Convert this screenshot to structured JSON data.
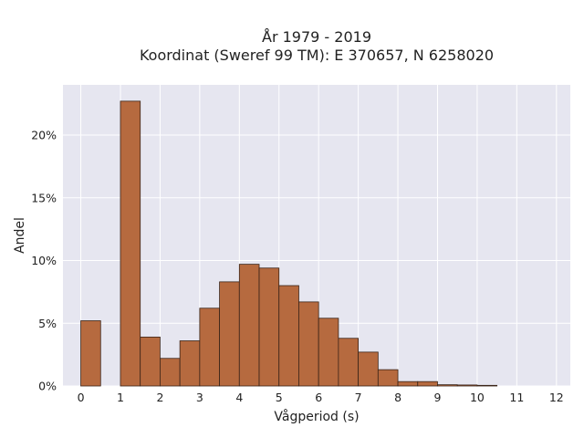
{
  "chart_data": {
    "type": "bar",
    "title": "År 1979 - 2019",
    "subtitle": "Koordinat (Sweref 99 TM): E 370657, N 6258020",
    "xlabel": "Vågperiod (s)",
    "ylabel": "Andel",
    "x_ticks": [
      "0",
      "1",
      "2",
      "3",
      "4",
      "5",
      "6",
      "7",
      "8",
      "9",
      "10",
      "11",
      "12"
    ],
    "y_ticks": [
      "0%",
      "5%",
      "10%",
      "15%",
      "20%"
    ],
    "xlim": [
      -0.45,
      12.35
    ],
    "ylim": [
      0,
      24
    ],
    "bin_width": 0.5,
    "bins": [
      {
        "x": 0.0,
        "value": 5.2
      },
      {
        "x": 0.5,
        "value": 0.0
      },
      {
        "x": 1.0,
        "value": 22.7
      },
      {
        "x": 1.5,
        "value": 3.9
      },
      {
        "x": 2.0,
        "value": 2.2
      },
      {
        "x": 2.5,
        "value": 3.6
      },
      {
        "x": 3.0,
        "value": 6.2
      },
      {
        "x": 3.5,
        "value": 8.3
      },
      {
        "x": 4.0,
        "value": 9.7
      },
      {
        "x": 4.5,
        "value": 9.4
      },
      {
        "x": 5.0,
        "value": 8.0
      },
      {
        "x": 5.5,
        "value": 6.7
      },
      {
        "x": 6.0,
        "value": 5.4
      },
      {
        "x": 6.5,
        "value": 3.8
      },
      {
        "x": 7.0,
        "value": 2.7
      },
      {
        "x": 7.5,
        "value": 1.3
      },
      {
        "x": 8.0,
        "value": 0.35
      },
      {
        "x": 8.5,
        "value": 0.35
      },
      {
        "x": 9.0,
        "value": 0.1
      },
      {
        "x": 9.5,
        "value": 0.08
      },
      {
        "x": 10.0,
        "value": 0.05
      }
    ],
    "grid": true,
    "colors": {
      "bar_fill": "#b66a3f",
      "bar_stroke": "#3a2418",
      "plot_bg": "#e6e6f0",
      "grid": "#ffffff"
    }
  }
}
